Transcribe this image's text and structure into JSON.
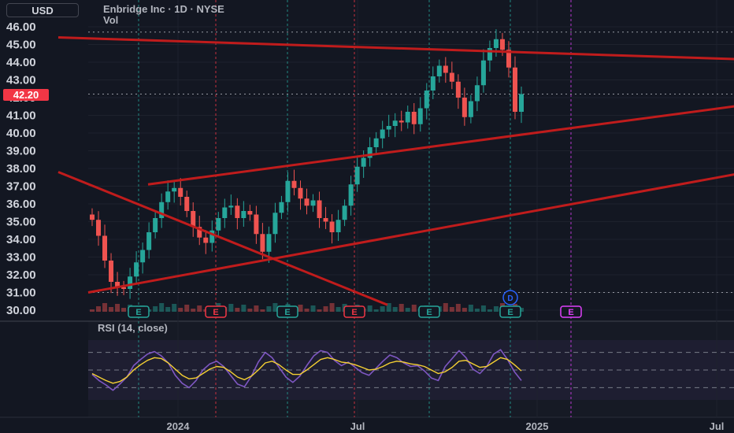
{
  "header": {
    "currency": "USD",
    "title": "Enbridge Inc · 1D · NYSE",
    "volume_label": "Vol",
    "last_price": "42.20"
  },
  "rsi_panel": {
    "label": "RSI (14, close)"
  },
  "colors": {
    "background": "#131722",
    "up_candle": "#26a69a",
    "down_candle": "#ef5350",
    "trendline": "#c01c1c",
    "rsi_line": "#7e57c2",
    "rsi_ma": "#f5d033",
    "earnings_marker": "#26a69a",
    "earnings_marker_red": "#f23645",
    "earnings_marker_future": "#e040fb",
    "dividend_marker": "#2962ff"
  },
  "markers": {
    "earnings_letter": "E",
    "dividend_letter": "D"
  },
  "chart_data": [
    {
      "type": "candlestick",
      "title": "Enbridge Inc · 1D · NYSE",
      "ylim": [
        30,
        46
      ],
      "y_ticks": [
        "30.00",
        "31.00",
        "32.00",
        "33.00",
        "34.00",
        "35.00",
        "36.00",
        "37.00",
        "38.00",
        "39.00",
        "40.00",
        "41.00",
        "42.00",
        "43.00",
        "44.00",
        "45.00",
        "46.00"
      ],
      "x_tick_labels": [
        "2024",
        "Jul",
        "2025",
        "Jul"
      ],
      "approx_closes": [
        35.1,
        34.2,
        32.8,
        31.6,
        31.3,
        31.2,
        31.9,
        32.7,
        33.4,
        34.4,
        35.2,
        36.1,
        36.7,
        36.9,
        36.4,
        35.6,
        34.7,
        34.1,
        33.8,
        34.5,
        35.2,
        35.8,
        35.9,
        35.2,
        35.6,
        35.4,
        34.3,
        33.3,
        34.3,
        35.5,
        36.1,
        37.3,
        36.9,
        36.3,
        35.9,
        36.2,
        35.2,
        35.0,
        34.4,
        35.1,
        35.9,
        37.1,
        38.1,
        38.6,
        39.2,
        39.7,
        40.2,
        40.4,
        40.7,
        40.6,
        41.2,
        40.5,
        41.4,
        42.4,
        43.2,
        43.8,
        43.4,
        42.9,
        42.0,
        40.9,
        41.8,
        42.7,
        44.1,
        44.8,
        45.3,
        44.7,
        43.7,
        41.2,
        42.2
      ],
      "last_price": 42.2,
      "horizontal_levels": [
        45.7,
        42.2,
        31.0
      ],
      "trendlines": [
        {
          "from": [
            "2023-09",
            45.4
          ],
          "to": [
            "2025-09",
            44.1
          ]
        },
        {
          "from": [
            "2023-12",
            37.1
          ],
          "to": [
            "2025-08",
            41.6
          ]
        },
        {
          "from": [
            "2023-10",
            31.0
          ],
          "to": [
            "2025-09",
            38.1
          ]
        },
        {
          "from": [
            "2023-09",
            37.8
          ],
          "to": [
            "2024-08",
            30.3
          ]
        }
      ]
    },
    {
      "type": "line",
      "title": "RSI (14, close)",
      "ylim": [
        0,
        100
      ],
      "reference_levels": [
        70,
        50,
        30
      ],
      "series": [
        {
          "values": [
            45,
            38,
            33,
            27,
            34,
            42,
            55,
            62,
            68,
            71,
            66,
            58,
            44,
            35,
            30,
            38,
            50,
            57,
            60,
            54,
            44,
            34,
            31,
            43,
            59,
            70,
            64,
            53,
            42,
            36,
            43,
            55,
            66,
            72,
            70,
            61,
            55,
            59,
            53,
            47,
            44,
            52,
            60,
            67,
            64,
            58,
            54,
            55,
            49,
            41,
            38,
            54,
            63,
            72,
            64,
            51,
            46,
            54,
            68,
            73,
            62,
            48,
            38
          ]
        },
        {
          "values": [
            46,
            42,
            38,
            35,
            37,
            42,
            50,
            56,
            61,
            64,
            63,
            58,
            51,
            44,
            40,
            41,
            46,
            51,
            54,
            53,
            48,
            42,
            39,
            43,
            50,
            58,
            60,
            56,
            50,
            45,
            45,
            50,
            56,
            62,
            64,
            62,
            59,
            58,
            56,
            53,
            50,
            51,
            54,
            58,
            60,
            59,
            57,
            56,
            54,
            50,
            46,
            48,
            53,
            60,
            61,
            57,
            53,
            54,
            59,
            64,
            62,
            56,
            49
          ]
        }
      ]
    }
  ]
}
